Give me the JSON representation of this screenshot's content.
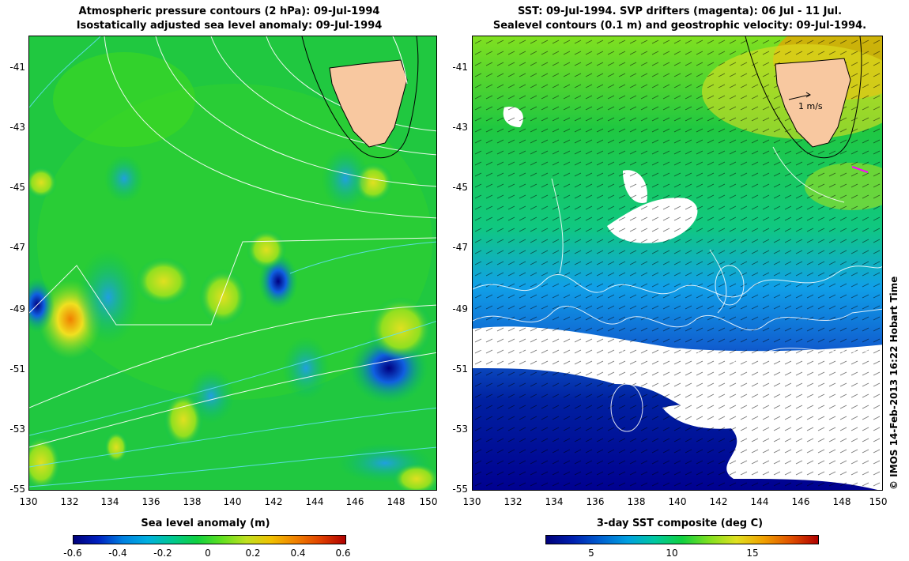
{
  "left_panel": {
    "title_line1": "Atmospheric pressure contours (2 hPa): 09-Jul-1994",
    "title_line2": "Isostatically adjusted sea level anomaly: 09-Jul-1994",
    "colorbar_title": "Sea level anomaly (m)",
    "colorbar_ticks": [
      "-0.6",
      "-0.4",
      "-0.2",
      "0",
      "0.2",
      "0.4",
      "0.6"
    ],
    "colors": {
      "low": "#00008b",
      "mid": "#00c060",
      "high": "#c00000",
      "land": "#f8c8a0"
    }
  },
  "right_panel": {
    "title_line1": "SST: 09-Jul-1994. SVP drifters (magenta): 06 Jul - 11 Jul.",
    "title_line2": "Sealevel contours (0.1 m) and geostrophic velocity: 09-Jul-1994.",
    "scale_label": "1 m/s",
    "colorbar_title": "3-day SST composite (deg C)",
    "colorbar_ticks": [
      "5",
      "10",
      "15"
    ]
  },
  "axes": {
    "y_ticks": [
      "-41",
      "-43",
      "-45",
      "-47",
      "-49",
      "-51",
      "-53",
      "-55"
    ],
    "x_ticks": [
      "130",
      "132",
      "134",
      "136",
      "138",
      "140",
      "142",
      "144",
      "146",
      "148",
      "150"
    ]
  },
  "copyright": "© IMOS 14-Feb-2013 16:22 Hobart Time"
}
